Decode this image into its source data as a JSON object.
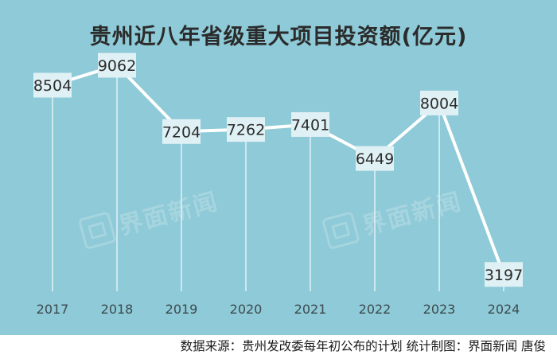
{
  "chart_data": {
    "type": "line",
    "title": "贵州近八年省级重大项目投资额(亿元)",
    "categories": [
      "2017",
      "2018",
      "2019",
      "2020",
      "2021",
      "2022",
      "2023",
      "2024"
    ],
    "series": [
      {
        "values": [
          8504,
          9062,
          7204,
          7262,
          7401,
          6449,
          8004,
          3197
        ]
      }
    ],
    "ylim": [
      0,
      10000
    ],
    "grid": false,
    "colors": {
      "background": "#8ecad7",
      "line": "#ffffff",
      "label_box": "#dff1f5",
      "text": "#2b2b2b"
    }
  },
  "watermark": {
    "text": "界面新闻"
  },
  "footer": {
    "text": "数据来源：贵州发改委每年初公布的计划  统计制图：界面新闻 唐俊"
  }
}
